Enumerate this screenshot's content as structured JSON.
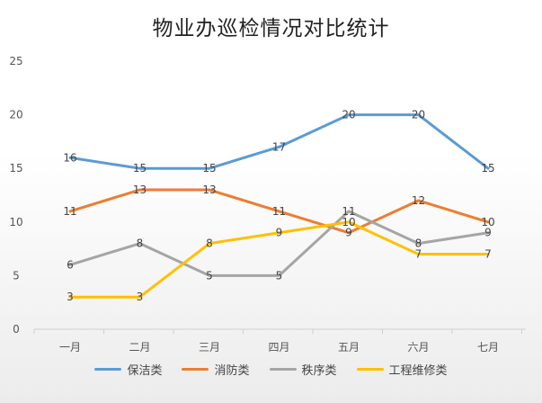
{
  "chart_data": {
    "type": "line",
    "title": "物业办巡检情况对比统计",
    "categories": [
      "一月",
      "二月",
      "三月",
      "四月",
      "五月",
      "六月",
      "七月"
    ],
    "ylim": [
      0,
      25
    ],
    "yticks": [
      0,
      5,
      10,
      15,
      20,
      25
    ],
    "grid": false,
    "legend": "bottom",
    "series": [
      {
        "name": "保洁类",
        "color": "#5b9bd5",
        "values": [
          16,
          15,
          15,
          17,
          20,
          20,
          15
        ]
      },
      {
        "name": "消防类",
        "color": "#ed7d31",
        "values": [
          11,
          13,
          13,
          11,
          9,
          12,
          10
        ]
      },
      {
        "name": "秩序类",
        "color": "#a5a5a5",
        "values": [
          6,
          8,
          5,
          5,
          11,
          8,
          9
        ]
      },
      {
        "name": "工程维修类",
        "color": "#ffc000",
        "values": [
          3,
          3,
          8,
          9,
          10,
          7,
          7
        ]
      }
    ]
  }
}
